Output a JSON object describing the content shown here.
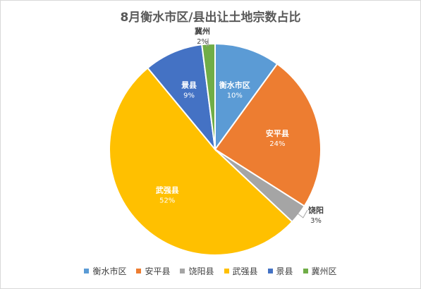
{
  "chart_data": {
    "type": "pie",
    "title": "8月衡水市区/县出让土地宗数占比",
    "slices": [
      {
        "label": "衡水市区",
        "value": 10,
        "pct_label": "10%",
        "color": "#5b9bd5"
      },
      {
        "label": "安平县",
        "value": 24,
        "pct_label": "24%",
        "color": "#ed7d31"
      },
      {
        "label": "饶阳",
        "value": 3,
        "pct_label": "3%",
        "color": "#a5a5a5"
      },
      {
        "label": "武强县",
        "value": 52,
        "pct_label": "52%",
        "color": "#ffc000"
      },
      {
        "label": "景县",
        "value": 9,
        "pct_label": "9%",
        "color": "#4472c4"
      },
      {
        "label": "冀州",
        "value": 2,
        "pct_label": "2%",
        "color": "#70ad47"
      }
    ],
    "legend": {
      "position": "bottom",
      "items": [
        {
          "label": "衡水市区",
          "color": "#5b9bd5"
        },
        {
          "label": "安平县",
          "color": "#ed7d31"
        },
        {
          "label": "饶阳县",
          "color": "#a5a5a5"
        },
        {
          "label": "武强县",
          "color": "#ffc000"
        },
        {
          "label": "景县",
          "color": "#4472c4"
        },
        {
          "label": "冀州区",
          "color": "#70ad47"
        }
      ]
    }
  }
}
